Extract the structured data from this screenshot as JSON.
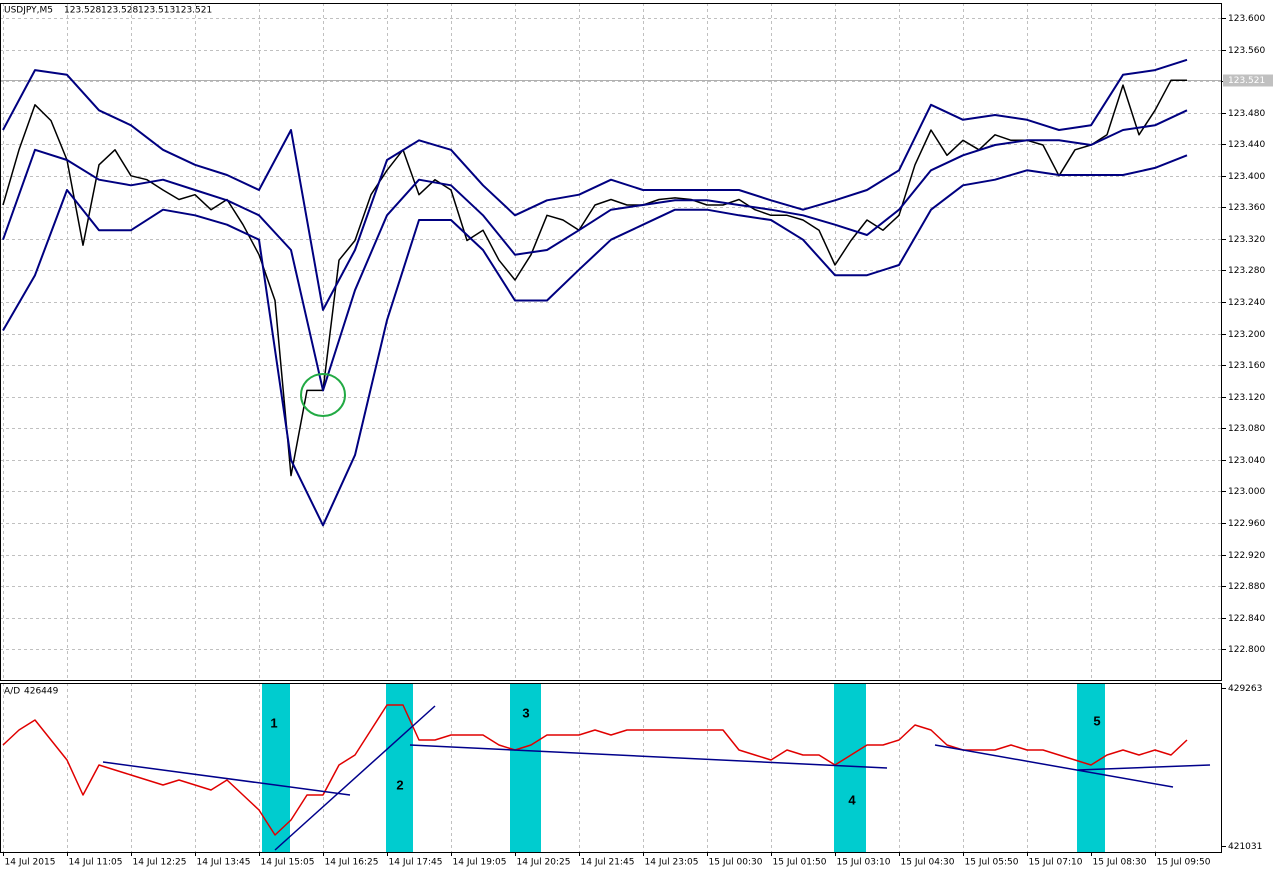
{
  "chart_data": [
    {
      "type": "line",
      "title": "USDJPY,M5",
      "ohlc": [
        123.528,
        123.528,
        123.513,
        123.521
      ],
      "last_price": 123.521,
      "xlim": [
        -0.75,
        304.75
      ],
      "ylim": [
        122.761,
        123.619
      ],
      "grid": true,
      "yticks": [
        {
          "value": 123.6,
          "label": "123.600"
        },
        {
          "value": 123.56,
          "label": "123.560"
        },
        {
          "value": 123.52,
          "label": "123.520"
        },
        {
          "value": 123.48,
          "label": "123.480"
        },
        {
          "value": 123.44,
          "label": "123.440"
        },
        {
          "value": 123.4,
          "label": "123.400"
        },
        {
          "value": 123.36,
          "label": "123.360"
        },
        {
          "value": 123.32,
          "label": "123.320"
        },
        {
          "value": 123.28,
          "label": "123.280"
        },
        {
          "value": 123.24,
          "label": "123.240"
        },
        {
          "value": 123.2,
          "label": "123.200"
        },
        {
          "value": 123.16,
          "label": "123.160"
        },
        {
          "value": 123.12,
          "label": "123.120"
        },
        {
          "value": 123.08,
          "label": "123.080"
        },
        {
          "value": 123.04,
          "label": "123.040"
        },
        {
          "value": 123.0,
          "label": "123.000"
        },
        {
          "value": 122.96,
          "label": "122.960"
        },
        {
          "value": 122.92,
          "label": "122.920"
        },
        {
          "value": 122.88,
          "label": "122.880"
        },
        {
          "value": 122.84,
          "label": "122.840"
        },
        {
          "value": 122.8,
          "label": "122.800"
        }
      ],
      "series": [
        {
          "color": "#000000",
          "x": [
            0,
            4,
            8,
            12,
            16,
            20,
            24,
            28,
            32,
            36,
            40,
            44,
            48,
            52,
            56,
            60,
            64,
            68,
            72,
            76,
            80,
            84,
            88,
            92,
            96,
            100,
            104,
            108,
            112,
            116,
            120,
            124,
            128,
            132,
            136,
            140,
            144,
            148,
            152,
            156,
            160,
            164,
            168,
            172,
            176,
            180,
            184,
            188,
            192,
            196,
            200,
            204,
            208,
            212,
            216,
            220,
            224,
            228,
            232,
            236,
            240,
            244,
            248,
            252,
            256,
            260,
            264,
            268,
            272,
            276,
            280,
            284,
            288,
            292,
            296
          ],
          "values": [
            123.363,
            123.433,
            123.49,
            123.47,
            123.42,
            123.312,
            123.414,
            123.433,
            123.4,
            123.395,
            123.382,
            123.37,
            123.376,
            123.357,
            123.37,
            123.338,
            123.3,
            123.242,
            123.02,
            123.128,
            123.128,
            123.293,
            123.318,
            123.376,
            123.407,
            123.433,
            123.376,
            123.395,
            123.382,
            123.318,
            123.331,
            123.293,
            123.268,
            123.3,
            123.35,
            123.344,
            123.331,
            123.363,
            123.37,
            123.363,
            123.363,
            123.37,
            123.372,
            123.37,
            123.363,
            123.363,
            123.37,
            123.357,
            123.35,
            123.35,
            123.344,
            123.331,
            123.287,
            123.318,
            123.344,
            123.331,
            123.35,
            123.414,
            123.458,
            123.426,
            123.445,
            123.433,
            123.452,
            123.445,
            123.445,
            123.439,
            123.4,
            123.433,
            123.439,
            123.452,
            123.515,
            123.452,
            123.483,
            123.521,
            123.521
          ]
        },
        {
          "color": "#000080",
          "x": [
            0,
            8,
            16,
            24,
            32,
            40,
            48,
            56,
            64,
            72,
            80,
            88,
            96,
            104,
            112,
            120,
            128,
            136,
            144,
            152,
            160,
            168,
            176,
            184,
            192,
            200,
            208,
            216,
            224,
            232,
            240,
            248,
            256,
            264,
            272,
            280,
            288,
            296
          ],
          "values": [
            123.458,
            123.534,
            123.528,
            123.483,
            123.464,
            123.433,
            123.414,
            123.401,
            123.382,
            123.458,
            123.23,
            123.306,
            123.42,
            123.445,
            123.433,
            123.388,
            123.35,
            123.369,
            123.376,
            123.395,
            123.382,
            123.382,
            123.382,
            123.382,
            123.369,
            123.357,
            123.369,
            123.382,
            123.407,
            123.49,
            123.471,
            123.477,
            123.471,
            123.458,
            123.464,
            123.528,
            123.534,
            123.547
          ]
        },
        {
          "color": "#000080",
          "x": [
            0,
            8,
            16,
            24,
            32,
            40,
            48,
            56,
            64,
            72,
            80,
            88,
            96,
            104,
            112,
            120,
            128,
            136,
            144,
            152,
            160,
            168,
            176,
            184,
            192,
            200,
            208,
            216,
            224,
            232,
            240,
            248,
            256,
            264,
            272,
            280,
            288,
            296
          ],
          "values": [
            123.319,
            123.433,
            123.42,
            123.395,
            123.388,
            123.395,
            123.382,
            123.369,
            123.35,
            123.306,
            123.128,
            123.255,
            123.35,
            123.395,
            123.388,
            123.35,
            123.3,
            123.306,
            123.331,
            123.357,
            123.363,
            123.369,
            123.369,
            123.363,
            123.357,
            123.35,
            123.338,
            123.325,
            123.357,
            123.407,
            123.426,
            123.439,
            123.445,
            123.445,
            123.439,
            123.458,
            123.464,
            123.483
          ]
        },
        {
          "color": "#000080",
          "x": [
            0,
            8,
            16,
            24,
            32,
            40,
            48,
            56,
            64,
            72,
            80,
            88,
            96,
            104,
            112,
            120,
            128,
            136,
            144,
            152,
            160,
            168,
            176,
            184,
            192,
            200,
            208,
            216,
            224,
            232,
            240,
            248,
            256,
            264,
            272,
            280,
            288,
            296
          ],
          "values": [
            123.204,
            123.274,
            123.382,
            123.331,
            123.331,
            123.357,
            123.35,
            123.338,
            123.319,
            123.04,
            122.957,
            123.046,
            123.217,
            123.344,
            123.344,
            123.306,
            123.242,
            123.242,
            123.281,
            123.319,
            123.338,
            123.357,
            123.357,
            123.35,
            123.344,
            123.319,
            123.274,
            123.274,
            123.287,
            123.357,
            123.388,
            123.395,
            123.407,
            123.401,
            123.401,
            123.401,
            123.41,
            123.426
          ]
        }
      ]
    },
    {
      "type": "line",
      "title": "A/D",
      "current": 426449,
      "xlim": [
        -0.75,
        304.75
      ],
      "ylim": [
        420718,
        429524
      ],
      "yticks": [
        429263,
        421031
      ],
      "xticks": [
        {
          "value": 0,
          "label": "14 Jul 2015"
        },
        {
          "value": 16,
          "label": "14 Jul 11:05"
        },
        {
          "value": 32,
          "label": "14 Jul 12:25"
        },
        {
          "value": 48,
          "label": "14 Jul 13:45"
        },
        {
          "value": 64,
          "label": "14 Jul 15:05"
        },
        {
          "value": 80,
          "label": "14 Jul 16:25"
        },
        {
          "value": 96,
          "label": "14 Jul 17:45"
        },
        {
          "value": 112,
          "label": "14 Jul 19:05"
        },
        {
          "value": 128,
          "label": "14 Jul 20:25"
        },
        {
          "value": 144,
          "label": "14 Jul 21:45"
        },
        {
          "value": 160,
          "label": "14 Jul 23:05"
        },
        {
          "value": 176,
          "label": "15 Jul 00:30"
        },
        {
          "value": 192,
          "label": "15 Jul 01:50"
        },
        {
          "value": 208,
          "label": "15 Jul 03:10"
        },
        {
          "value": 224,
          "label": "15 Jul 04:30"
        },
        {
          "value": 240,
          "label": "15 Jul 05:50"
        },
        {
          "value": 256,
          "label": "15 Jul 07:10"
        },
        {
          "value": 272,
          "label": "15 Jul 08:30"
        },
        {
          "value": 288,
          "label": "15 Jul 09:50"
        }
      ],
      "annotations": [
        "1",
        "2",
        "3",
        "4",
        "5"
      ],
      "series": [
        {
          "color": "#e00000",
          "x": [
            0,
            4,
            8,
            12,
            16,
            20,
            24,
            28,
            32,
            36,
            40,
            44,
            48,
            52,
            56,
            60,
            64,
            68,
            72,
            76,
            80,
            84,
            88,
            92,
            96,
            100,
            104,
            108,
            112,
            116,
            120,
            124,
            128,
            132,
            136,
            140,
            144,
            148,
            152,
            156,
            160,
            164,
            168,
            172,
            176,
            180,
            184,
            188,
            192,
            196,
            200,
            204,
            208,
            212,
            216,
            220,
            224,
            228,
            232,
            236,
            240,
            244,
            248,
            252,
            256,
            260,
            264,
            268,
            272,
            276,
            280,
            284,
            288,
            292,
            296
          ],
          "values": [
            426293,
            427075,
            427596,
            426554,
            425512,
            423688,
            425251,
            424991,
            424730,
            424470,
            424209,
            424470,
            424209,
            423949,
            424470,
            423688,
            422907,
            421604,
            422386,
            423688,
            423688,
            425251,
            425772,
            427075,
            428377,
            428377,
            426554,
            426554,
            426814,
            426814,
            426814,
            426293,
            426033,
            426293,
            426814,
            426814,
            426814,
            427075,
            426814,
            427075,
            427075,
            427075,
            427075,
            427075,
            427075,
            427075,
            426033,
            425772,
            425512,
            426033,
            425772,
            425772,
            425251,
            425772,
            426293,
            426293,
            426554,
            427335,
            427075,
            426293,
            426033,
            426033,
            426033,
            426293,
            426033,
            426033,
            425772,
            425512,
            425251,
            425772,
            426033,
            425772,
            426033,
            425772,
            426554
          ]
        }
      ]
    }
  ]
}
